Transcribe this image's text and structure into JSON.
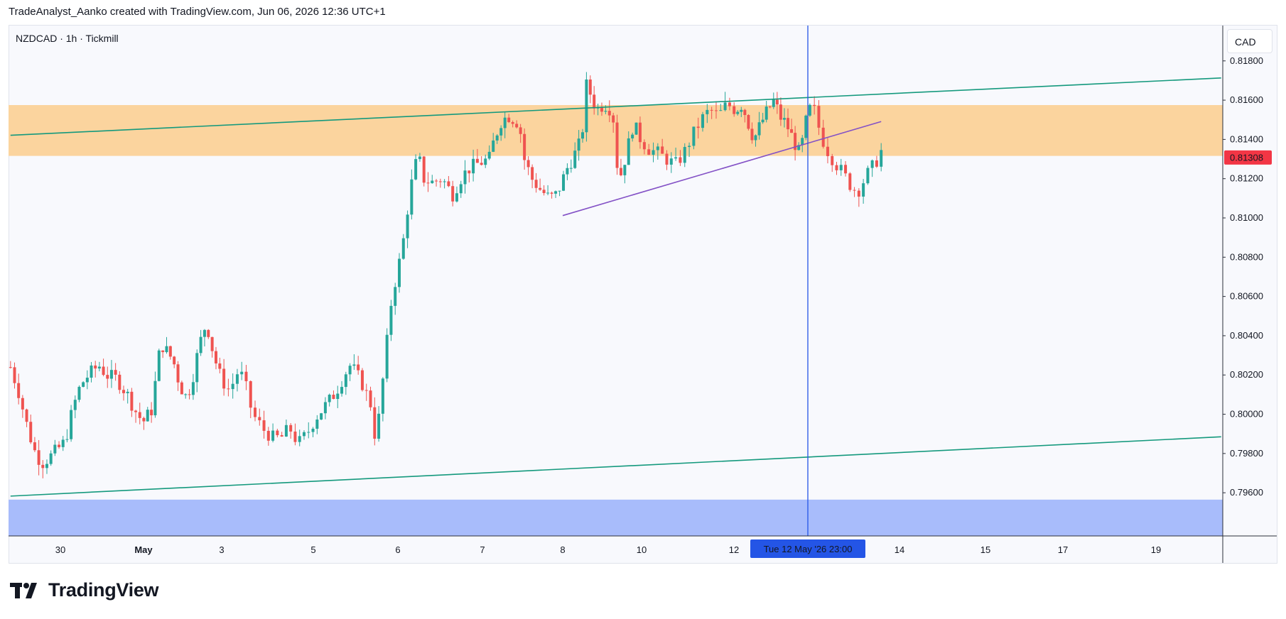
{
  "header": {
    "attribution": "TradeAnalyst_Aanko created with TradingView.com, Jun 06, 2026 12:36 UTC+1"
  },
  "symbol": {
    "label": "NZDCAD · 1h · Tickmill"
  },
  "currency_button": "CAD",
  "brand": "TradingView",
  "colors": {
    "up": "#26a69a",
    "down": "#ef5350",
    "resistance_zone": "#fbd49e",
    "support_zone": "#a8bcfb",
    "channel_line": "#14997d",
    "trend_line": "#8351c6",
    "crosshair": "#2455e6",
    "price_tag": "#f23645"
  },
  "chart_data": {
    "type": "candlestick",
    "symbol": "NZDCAD",
    "timeframe": "1h",
    "broker": "Tickmill",
    "currency": "CAD",
    "ylim": [
      0.7938,
      0.8198
    ],
    "y_ticks": [
      "0.81800",
      "0.81600",
      "0.81400",
      "0.81200",
      "0.81000",
      "0.80800",
      "0.80600",
      "0.80400",
      "0.80200",
      "0.80000",
      "0.79800",
      "0.79600"
    ],
    "x_ticks": [
      {
        "label": "30",
        "day": 0
      },
      {
        "label": "May",
        "day": 1,
        "bold": true
      },
      {
        "label": "3",
        "day": 2
      },
      {
        "label": "5",
        "day": 3
      },
      {
        "label": "6",
        "day": 4
      },
      {
        "label": "7",
        "day": 5
      },
      {
        "label": "8",
        "day": 6
      },
      {
        "label": "10",
        "day": 7
      },
      {
        "label": "12",
        "day": 8
      },
      {
        "label": "14",
        "day": 10
      },
      {
        "label": "15",
        "day": 11
      },
      {
        "label": "17",
        "day": 12
      },
      {
        "label": "19",
        "day": 13
      }
    ],
    "last_price": "0.81308",
    "crosshair_label": "Tue 12 May '26  23:00",
    "crosshair_day": 9,
    "zones": [
      {
        "name": "resistance-zone",
        "from": 0.81316,
        "to": 0.81575
      },
      {
        "name": "support-zone",
        "from": 0.7938,
        "to": 0.79565
      }
    ],
    "lines": [
      {
        "name": "upper-channel-line",
        "x1": -0.6,
        "y1": 0.81421,
        "x2": 13.7,
        "y2": 0.81713
      },
      {
        "name": "lower-channel-line",
        "x1": -0.6,
        "y1": 0.79583,
        "x2": 13.7,
        "y2": 0.79885
      },
      {
        "name": "rising-trend-line",
        "x1": 6.0,
        "y1": 0.81012,
        "x2": 9.8,
        "y2": 0.81491
      }
    ],
    "waypoints": [
      [
        -0.6,
        0.8024
      ],
      [
        -0.45,
        0.8012
      ],
      [
        -0.3,
        0.7996
      ],
      [
        -0.15,
        0.7982
      ],
      [
        0.0,
        0.7975
      ],
      [
        0.15,
        0.7978
      ],
      [
        0.3,
        0.7982
      ],
      [
        0.45,
        0.7986
      ],
      [
        0.6,
        0.8003
      ],
      [
        0.75,
        0.8015
      ],
      [
        0.9,
        0.802
      ],
      [
        1.1,
        0.8025
      ],
      [
        1.25,
        0.802
      ],
      [
        1.45,
        0.8018
      ],
      [
        1.65,
        0.801
      ],
      [
        1.8,
        0.8002
      ],
      [
        1.95,
        0.7996
      ],
      [
        2.15,
        0.8003
      ],
      [
        2.25,
        0.8028
      ],
      [
        2.35,
        0.8035
      ],
      [
        2.5,
        0.803
      ],
      [
        2.6,
        0.8025
      ],
      [
        2.7,
        0.8015
      ],
      [
        2.85,
        0.8008
      ],
      [
        3.0,
        0.8022
      ],
      [
        3.1,
        0.8035
      ],
      [
        3.25,
        0.8047
      ],
      [
        3.4,
        0.803
      ],
      [
        3.55,
        0.8018
      ],
      [
        3.7,
        0.8012
      ],
      [
        3.85,
        0.8022
      ],
      [
        3.95,
        0.8018
      ],
      [
        4.1,
        0.8
      ],
      [
        4.3,
        0.7992
      ],
      [
        4.45,
        0.7988
      ],
      [
        4.6,
        0.7988
      ],
      [
        4.75,
        0.7993
      ],
      [
        4.9,
        0.7985
      ],
      [
        5.05,
        0.799
      ],
      [
        5.2,
        0.7998
      ],
      [
        5.35,
        0.8003
      ],
      [
        5.5,
        0.8008
      ],
      [
        5.6,
        0.8012
      ],
      [
        5.75,
        0.802
      ],
      [
        5.85,
        0.8025
      ],
      [
        5.95,
        0.8022
      ],
      [
        6.1,
        0.8015
      ],
      [
        6.25,
        0.8005
      ],
      [
        6.35,
        0.7985
      ],
      [
        6.45,
        0.801
      ],
      [
        6.55,
        0.8035
      ],
      [
        6.65,
        0.806
      ],
      [
        6.75,
        0.8072
      ],
      [
        6.85,
        0.8085
      ],
      [
        6.95,
        0.8105
      ],
      [
        7.05,
        0.8122
      ],
      [
        7.15,
        0.8132
      ],
      [
        7.25,
        0.812
      ],
      [
        7.4,
        0.8118
      ],
      [
        7.6,
        0.812
      ],
      [
        7.8,
        0.8112
      ],
      [
        7.95,
        0.812
      ],
      [
        8.1,
        0.8125
      ],
      [
        8.3,
        0.8128
      ],
      [
        8.5,
        0.813
      ],
      [
        8.6,
        0.814
      ],
      [
        8.75,
        0.815
      ],
      [
        8.9,
        0.8152
      ],
      [
        9.1,
        0.8148
      ],
      [
        9.2,
        0.813
      ],
      [
        9.35,
        0.812
      ],
      [
        9.5,
        0.8115
      ],
      [
        9.7,
        0.811
      ],
      [
        9.85,
        0.8112
      ],
      [
        10.05,
        0.8125
      ],
      [
        10.2,
        0.8132
      ],
      [
        10.35,
        0.814
      ],
      [
        10.45,
        0.8168
      ],
      [
        10.55,
        0.8162
      ],
      [
        10.65,
        0.8155
      ],
      [
        10.8,
        0.8158
      ],
      [
        10.9,
        0.8157
      ],
      [
        11.0,
        0.815
      ],
      [
        11.1,
        0.8118
      ],
      [
        11.25,
        0.8132
      ],
      [
        11.4,
        0.8148
      ],
      [
        11.55,
        0.814
      ],
      [
        11.7,
        0.8135
      ],
      [
        11.85,
        0.8133
      ],
      [
        12.0,
        0.813
      ],
      [
        12.15,
        0.8127
      ],
      [
        12.3,
        0.8133
      ],
      [
        12.45,
        0.8142
      ],
      [
        12.6,
        0.815
      ],
      [
        12.75,
        0.8155
      ],
      [
        12.9,
        0.8152
      ],
      [
        13.05,
        0.8158
      ],
      [
        13.2,
        0.8155
      ],
      [
        13.35,
        0.8158
      ],
      [
        13.45,
        0.815
      ],
      [
        13.6,
        0.814
      ],
      [
        13.75,
        0.8148
      ],
      [
        13.9,
        0.8155
      ],
      [
        14.05,
        0.816
      ],
      [
        14.15,
        0.8152
      ],
      [
        14.3,
        0.8148
      ],
      [
        14.45,
        0.814
      ],
      [
        14.6,
        0.8132
      ],
      [
        14.75,
        0.8152
      ],
      [
        14.85,
        0.8158
      ],
      [
        15.0,
        0.8142
      ],
      [
        15.1,
        0.8135
      ],
      [
        15.25,
        0.8128
      ],
      [
        15.4,
        0.8122
      ],
      [
        15.55,
        0.8115
      ],
      [
        15.65,
        0.8114
      ],
      [
        15.8,
        0.8122
      ],
      [
        15.95,
        0.8128
      ],
      [
        16.05,
        0.8134
      ]
    ]
  }
}
